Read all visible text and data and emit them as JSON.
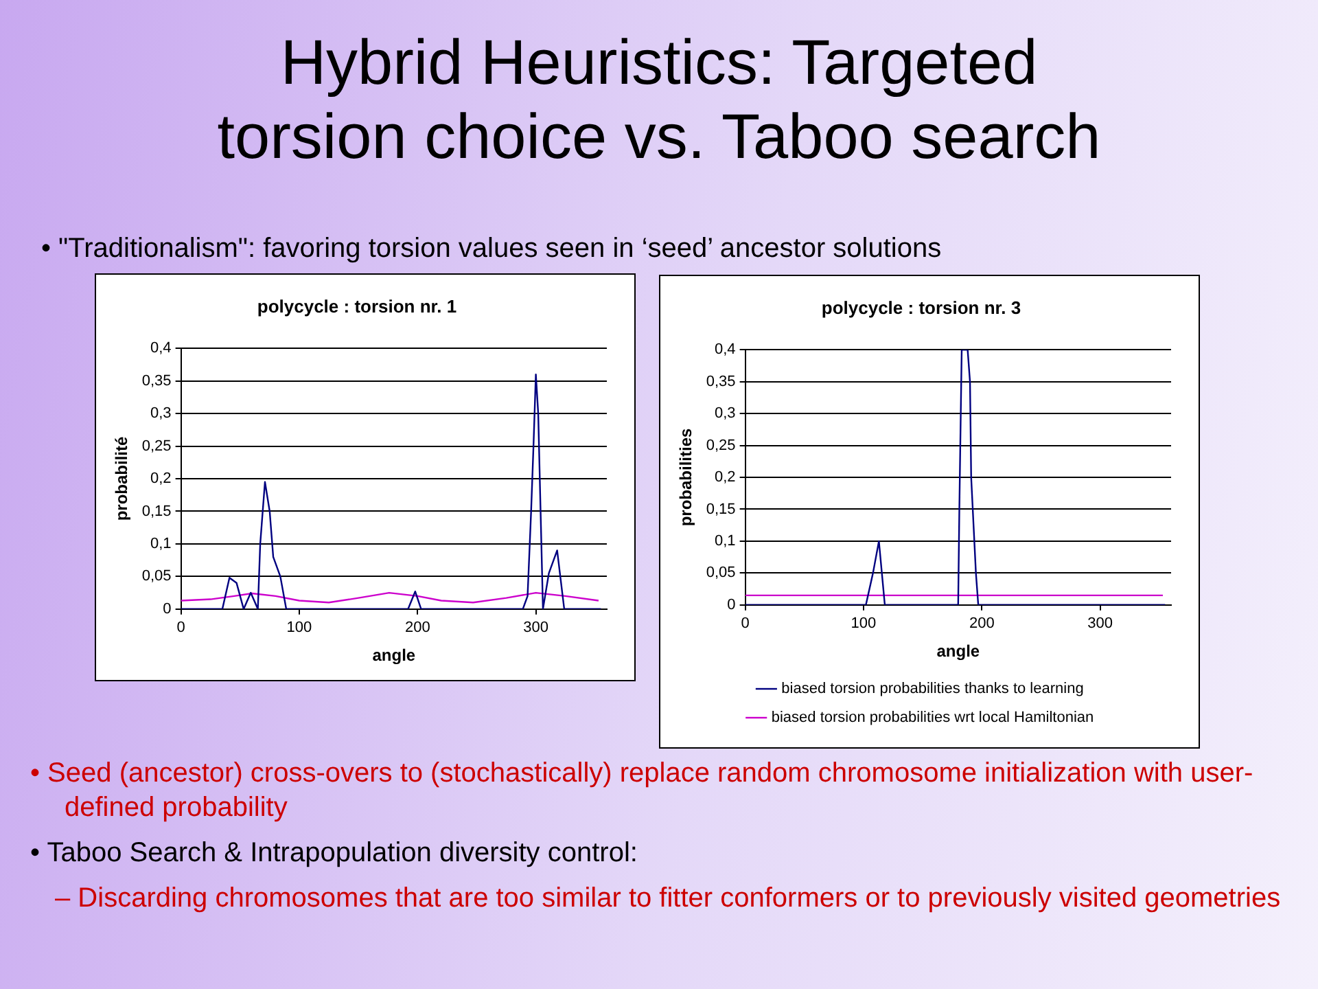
{
  "chart_data": [
    {
      "type": "other",
      "title": "Hybrid Heuristics: Targeted torsion choice vs. Taboo search",
      "subtitle": "• \"Traditionalism\": favoring torsion values seen in ‘seed’ ancestor solutions"
    },
    {
      "type": "line",
      "title": "polycycle : torsion nr. 1",
      "xlabel": "angle",
      "ylabel": "probabilité",
      "xlim": [
        0,
        360
      ],
      "xticks": [
        0,
        100,
        200,
        300
      ],
      "ylim": [
        0,
        0.4
      ],
      "yticks": [
        0,
        {
          "value": 0.05,
          "label": "0,05"
        },
        {
          "value": 0.1,
          "label": "0,1"
        },
        {
          "value": 0.15,
          "label": "0,15"
        },
        {
          "value": 0.2,
          "label": "0,2"
        },
        {
          "value": 0.25,
          "label": "0,25"
        },
        {
          "value": 0.3,
          "label": "0,3"
        },
        {
          "value": 0.35,
          "label": "0,35"
        },
        {
          "value": 0.4,
          "label": "0,4"
        }
      ],
      "grid": "y",
      "legend": false,
      "marker": "none",
      "line_style": "solid",
      "series": [
        {
          "color": "#000080",
          "x": [
            0,
            35,
            41,
            47,
            53,
            59,
            65,
            67,
            71,
            75,
            78,
            84,
            89,
            192,
            198,
            203,
            289,
            293,
            296,
            298,
            300,
            302,
            304,
            306,
            311,
            318,
            324,
            355
          ],
          "values": [
            0,
            0,
            0.048,
            0.04,
            0,
            0.025,
            0,
            0.1,
            0.195,
            0.15,
            0.08,
            0.05,
            0,
            0,
            0.027,
            0,
            0,
            0.02,
            0.15,
            0.25,
            0.36,
            0.3,
            0.15,
            0,
            0.055,
            0.09,
            0,
            0
          ]
        },
        {
          "color": "#cc00cc",
          "x": [
            0,
            25,
            45,
            60,
            80,
            100,
            125,
            150,
            176,
            200,
            220,
            247,
            275,
            300,
            325,
            353
          ],
          "values": [
            0.013,
            0.015,
            0.02,
            0.024,
            0.02,
            0.013,
            0.01,
            0.017,
            0.025,
            0.02,
            0.013,
            0.01,
            0.017,
            0.025,
            0.02,
            0.013
          ]
        }
      ]
    },
    {
      "type": "line",
      "title": "polycycle : torsion nr. 3",
      "xlabel": "angle",
      "ylabel": "probabilities",
      "xlim": [
        0,
        360
      ],
      "xticks": [
        0,
        100,
        200,
        300
      ],
      "ylim": [
        0,
        0.4
      ],
      "yticks": [
        0,
        {
          "value": 0.05,
          "label": "0,05"
        },
        {
          "value": 0.1,
          "label": "0,1"
        },
        {
          "value": 0.15,
          "label": "0,15"
        },
        {
          "value": 0.2,
          "label": "0,2"
        },
        {
          "value": 0.25,
          "label": "0,25"
        },
        {
          "value": 0.3,
          "label": "0,3"
        },
        {
          "value": 0.35,
          "label": "0,35"
        },
        {
          "value": 0.4,
          "label": "0,4"
        }
      ],
      "grid": "y",
      "legend": "bottom",
      "marker": "none",
      "line_style": "solid",
      "series": [
        {
          "name": "biased torsion probabilities thanks to learning",
          "color": "#000080",
          "x": [
            0,
            102,
            108,
            113,
            118,
            180,
            181,
            183,
            188,
            190,
            191,
            195,
            197,
            355
          ],
          "values": [
            0,
            0,
            0.05,
            0.1,
            0,
            0,
            0.15,
            0.4,
            0.4,
            0.35,
            0.2,
            0.05,
            0,
            0
          ]
        },
        {
          "name": "biased torsion probabilities wrt local Hamiltonian",
          "color": "#cc00cc",
          "x": [
            0,
            353
          ],
          "values": [
            0.015,
            0.015
          ]
        }
      ]
    },
    {
      "type": "other",
      "annotations": [
        "• Seed (ancestor) cross-overs to (stochastically) replace random chromosome initialization with user-defined probability",
        "• Taboo Search & Intrapopulation diversity control:",
        "– Discarding chromosomes that are too similar to fitter conformers or to previously visited geometries"
      ]
    }
  ]
}
